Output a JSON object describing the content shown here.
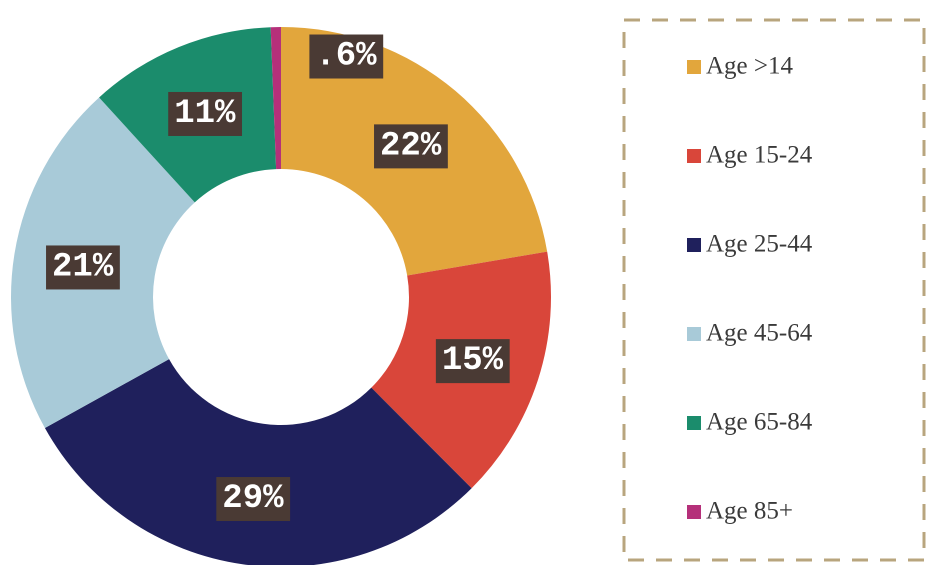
{
  "chart_data": {
    "type": "donut",
    "categories": [
      "Age >14",
      "Age 15-24",
      "Age 25-44",
      "Age 45-64",
      "Age 65-84",
      "Age 85+"
    ],
    "values": [
      22,
      15,
      29,
      21,
      11,
      0.6
    ],
    "value_labels": [
      "22%",
      "15%",
      "29%",
      "21%",
      "11%",
      ".6%"
    ],
    "colors": [
      "#e2a63c",
      "#d9463a",
      "#1f205c",
      "#a8cad8",
      "#1b8c6c",
      "#b5307a"
    ],
    "legend": "right"
  }
}
